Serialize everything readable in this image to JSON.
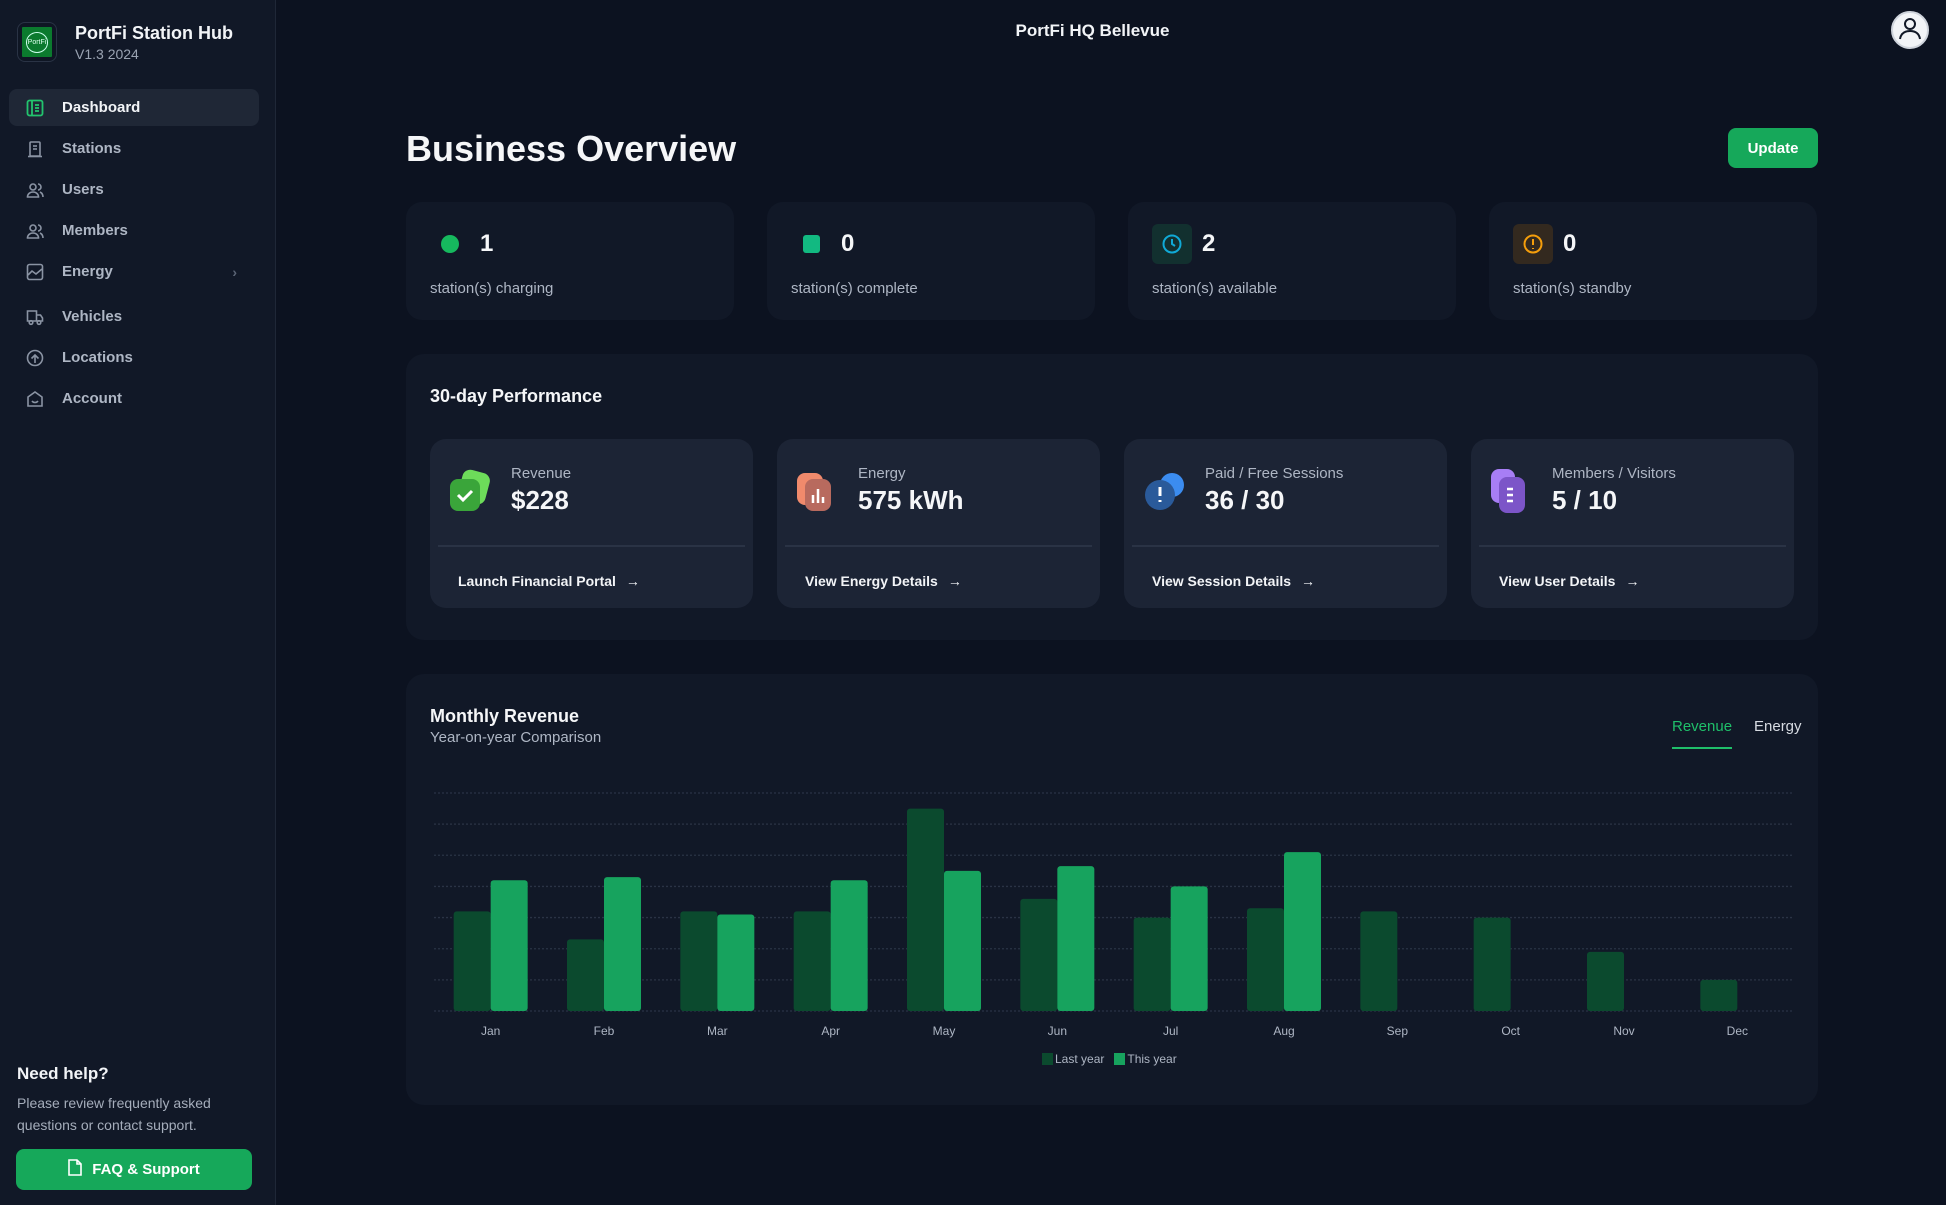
{
  "app": {
    "name": "PortFi Station Hub",
    "version": "V1.3 2024",
    "logo_text": "PortFi"
  },
  "sidebar": {
    "items": [
      {
        "label": "Dashboard",
        "icon": "dashboard-icon",
        "active": true
      },
      {
        "label": "Stations",
        "icon": "station-icon"
      },
      {
        "label": "Users",
        "icon": "users-icon"
      },
      {
        "label": "Members",
        "icon": "members-icon"
      },
      {
        "label": "Energy",
        "icon": "chart-icon",
        "has_submenu": true
      },
      {
        "label": "Vehicles",
        "icon": "truck-icon"
      },
      {
        "label": "Locations",
        "icon": "location-icon"
      },
      {
        "label": "Account",
        "icon": "account-icon"
      }
    ],
    "help": {
      "title": "Need help?",
      "text": "Please review frequently asked questions or contact support.",
      "button": "FAQ & Support"
    }
  },
  "header": {
    "location": "PortFi HQ Bellevue"
  },
  "main": {
    "title": "Business Overview",
    "update_label": "Update",
    "stats": [
      {
        "value": "1",
        "label": "station(s) charging",
        "color": "#16b95e"
      },
      {
        "value": "0",
        "label": "station(s) complete",
        "color": "#12b981"
      },
      {
        "value": "2",
        "label": "station(s) available",
        "color": "#10a9d6"
      },
      {
        "value": "0",
        "label": "station(s) standby",
        "color": "#f59e0b"
      }
    ],
    "performance": {
      "title": "30-day Performance",
      "cards": [
        {
          "label": "Revenue",
          "value": "$228",
          "link": "Launch Financial Portal"
        },
        {
          "label": "Energy",
          "value": "575 kWh",
          "link": "View Energy Details"
        },
        {
          "label": "Paid / Free Sessions",
          "value": "36 / 30",
          "link": "View Session Details"
        },
        {
          "label": "Members / Visitors",
          "value": "5 / 10",
          "link": "View User Details"
        }
      ]
    },
    "monthly": {
      "title": "Monthly Revenue",
      "subtitle": "Year-on-year Comparison",
      "tabs": [
        "Revenue",
        "Energy"
      ]
    }
  },
  "chart_data": {
    "type": "bar",
    "title": "Monthly Revenue",
    "categories": [
      "Jan",
      "Feb",
      "Mar",
      "Apr",
      "May",
      "Jun",
      "Jul",
      "Aug",
      "Sep",
      "Oct",
      "Nov",
      "Dec"
    ],
    "series": [
      {
        "name": "Last year",
        "color": "#0b4a2e",
        "values": [
          3.2,
          2.3,
          3.2,
          3.2,
          6.5,
          3.6,
          3.0,
          3.3,
          3.2,
          3.0,
          1.9,
          1.0
        ]
      },
      {
        "name": "This year",
        "color": "#17a35e",
        "values": [
          4.2,
          4.3,
          3.1,
          4.2,
          4.5,
          4.65,
          4.0,
          5.1,
          null,
          null,
          null,
          null
        ]
      }
    ],
    "ylim": [
      0,
      7
    ],
    "grid": true,
    "legend": "bottom"
  }
}
